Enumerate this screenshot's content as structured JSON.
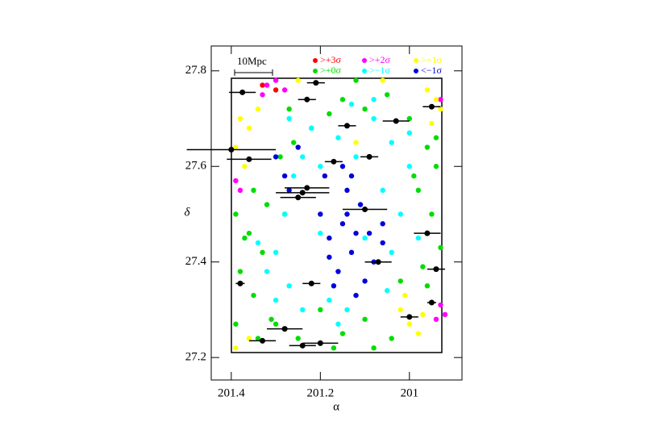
{
  "chart_data": {
    "type": "scatter",
    "xlabel": "α",
    "ylabel": "δ",
    "scale_label": "10Mpc",
    "xlim": [
      201.445,
      200.882
    ],
    "ylim": [
      27.153,
      27.852
    ],
    "xticks": [
      {
        "value": 201.4,
        "label": "201.4"
      },
      {
        "value": 201.2,
        "label": "201.2"
      },
      201
    ],
    "yticks": [
      {
        "value": 27.2,
        "label": "27.2"
      },
      {
        "value": 27.4,
        "label": "27.4"
      },
      {
        "value": 27.6,
        "label": "27.6"
      },
      {
        "value": 27.8,
        "label": "27.8"
      }
    ],
    "series": [
      {
        "name": ">+3σ",
        "color": "#ff0000",
        "x": [
          201.33,
          201.3
        ],
        "y": [
          27.77,
          27.76
        ]
      },
      {
        "name": ">+2σ",
        "color": "#ff00ff",
        "x": [
          201.32,
          201.3,
          201.28,
          201.39,
          201.38,
          200.93,
          200.92,
          200.94,
          200.93,
          201.33
        ],
        "y": [
          27.77,
          27.78,
          27.76,
          27.57,
          27.55,
          27.31,
          27.29,
          27.28,
          27.74,
          27.75
        ]
      },
      {
        "name": ">+1σ",
        "color": "#ffff00",
        "x": [
          201.38,
          201.36,
          201.34,
          201.39,
          201.37,
          200.96,
          200.94,
          200.95,
          200.93,
          201.02,
          201.0,
          200.98,
          201.01,
          200.97,
          201.39,
          201.36,
          201.12,
          201.25,
          201.06
        ],
        "y": [
          27.7,
          27.68,
          27.72,
          27.64,
          27.6,
          27.76,
          27.74,
          27.69,
          27.72,
          27.3,
          27.27,
          27.25,
          27.33,
          27.29,
          27.22,
          27.24,
          27.65,
          27.78,
          27.78
        ]
      },
      {
        "name": ">+0σ",
        "color": "#00dd00",
        "x": [
          201.39,
          201.36,
          201.33,
          201.38,
          201.35,
          201.31,
          201.39,
          201.34,
          201.37,
          201.32,
          201.29,
          201.26,
          201.22,
          201.18,
          201.15,
          201.1,
          201.05,
          201.0,
          200.96,
          200.94,
          200.98,
          200.95,
          200.93,
          200.97,
          200.94,
          201.3,
          201.25,
          201.15,
          201.1,
          201.04,
          201.2,
          201.28,
          201.35,
          201.17,
          201.02,
          200.99,
          201.08,
          201.27,
          201.12,
          200.96
        ],
        "y": [
          27.5,
          27.46,
          27.42,
          27.38,
          27.33,
          27.28,
          27.27,
          27.24,
          27.45,
          27.52,
          27.62,
          27.65,
          27.68,
          27.71,
          27.74,
          27.72,
          27.75,
          27.7,
          27.64,
          27.6,
          27.55,
          27.5,
          27.43,
          27.39,
          27.66,
          27.27,
          27.24,
          27.25,
          27.28,
          27.24,
          27.3,
          27.5,
          27.55,
          27.22,
          27.36,
          27.58,
          27.22,
          27.72,
          27.78,
          27.35
        ]
      },
      {
        "name": ">−1σ",
        "color": "#00ffff",
        "x": [
          201.3,
          201.27,
          201.24,
          201.2,
          201.16,
          201.12,
          201.08,
          201.04,
          201.0,
          201.06,
          201.1,
          201.22,
          201.28,
          201.32,
          201.26,
          201.02,
          200.98,
          201.05,
          201.14,
          201.18,
          201.3,
          201.24,
          201.34,
          201.0,
          201.08,
          201.2,
          201.13,
          201.27,
          201.04,
          201.16
        ],
        "y": [
          27.42,
          27.35,
          27.3,
          27.46,
          27.66,
          27.62,
          27.7,
          27.65,
          27.6,
          27.55,
          27.45,
          27.68,
          27.5,
          27.38,
          27.58,
          27.5,
          27.45,
          27.34,
          27.3,
          27.32,
          27.32,
          27.62,
          27.44,
          27.67,
          27.74,
          27.6,
          27.73,
          27.7,
          27.42,
          27.27
        ]
      },
      {
        "name": "<−1σ",
        "color": "#0000dd",
        "x": [
          201.2,
          201.18,
          201.15,
          201.13,
          201.16,
          201.11,
          201.09,
          201.14,
          201.17,
          201.12,
          201.08,
          201.06,
          201.19,
          201.15,
          201.13,
          201.3,
          201.28,
          201.27,
          201.25,
          201.1,
          201.06,
          201.14,
          201.18,
          201.12
        ],
        "y": [
          27.5,
          27.45,
          27.48,
          27.42,
          27.38,
          27.52,
          27.46,
          27.55,
          27.35,
          27.33,
          27.4,
          27.48,
          27.58,
          27.6,
          27.58,
          27.62,
          27.58,
          27.55,
          27.64,
          27.36,
          27.44,
          27.5,
          27.41,
          27.46
        ]
      },
      {
        "color": "#000000",
        "x": [
          201.375,
          201.4,
          201.36,
          201.23,
          201.24,
          201.25,
          201.1,
          201.09,
          201.03,
          200.95,
          200.96,
          200.94,
          201.07,
          201.22,
          201.38,
          201.0,
          200.95,
          201.28,
          201.2,
          201.24,
          201.33,
          201.21,
          201.14,
          201.17,
          201.23
        ],
        "y": [
          27.755,
          27.635,
          27.615,
          27.555,
          27.545,
          27.535,
          27.51,
          27.62,
          27.695,
          27.725,
          27.46,
          27.385,
          27.4,
          27.355,
          27.355,
          27.285,
          27.315,
          27.26,
          27.23,
          27.225,
          27.235,
          27.775,
          27.685,
          27.61,
          27.74
        ],
        "xerr": [
          0.03,
          0.1,
          0.05,
          0.05,
          0.06,
          0.04,
          0.05,
          0.02,
          0.03,
          0.02,
          0.03,
          0.02,
          0.03,
          0.02,
          0.01,
          0.02,
          0.01,
          0.04,
          0.04,
          0.03,
          0.03,
          0.02,
          0.02,
          0.02,
          0.02
        ]
      }
    ]
  }
}
